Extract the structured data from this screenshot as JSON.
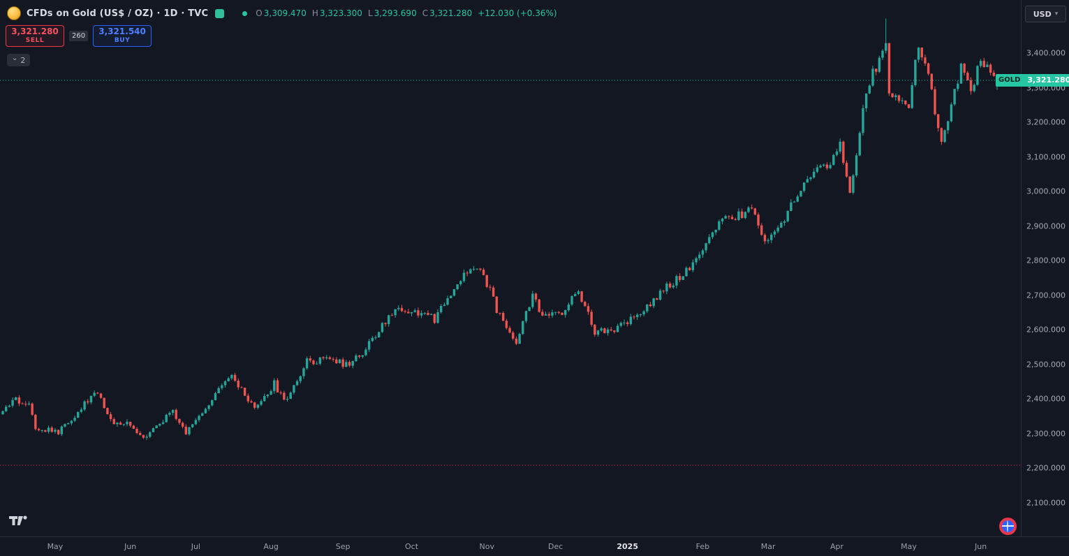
{
  "header": {
    "symbol_title": "CFDs on Gold (US$ / OZ) · 1D · TVC",
    "ohlc": {
      "o_label": "O",
      "o": "3,309.470",
      "h_label": "H",
      "h": "3,323.300",
      "l_label": "L",
      "l": "3,293.690",
      "c_label": "C",
      "c": "3,321.280",
      "change": "+12.030 (+0.36%)"
    }
  },
  "trade_panel": {
    "sell_price": "3,321.280",
    "sell_label": "SELL",
    "spread": "260",
    "buy_price": "3,321.540",
    "buy_label": "BUY"
  },
  "indicators_chip": {
    "count": "2"
  },
  "icons": {
    "dropdown_caret": "▾",
    "chevron_down": "⌄"
  },
  "price_axis": {
    "currency": "USD",
    "symbol_tag": "GOLD",
    "last_price_label": "3,321.280",
    "labels": [
      "3,400.000",
      "3,300.000",
      "3,200.000",
      "3,100.000",
      "3,000.000",
      "2,900.000",
      "2,800.000",
      "2,700.000",
      "2,600.000",
      "2,500.000",
      "2,400.000",
      "2,300.000",
      "2,200.000",
      "2,100.000"
    ]
  },
  "time_axis": {
    "labels": [
      "May",
      "Jun",
      "Jul",
      "Aug",
      "Sep",
      "Oct",
      "Nov",
      "Dec",
      "2025",
      "Feb",
      "Mar",
      "Apr",
      "May",
      "Jun"
    ]
  },
  "chart_data": {
    "type": "candlestick",
    "title": "CFDs on Gold (US$ / OZ), Daily, TVC",
    "timeframe": "1D",
    "symbol": "GOLD",
    "start_date": "2024-04-09",
    "end_date": "2025-06-09",
    "ylim": [
      2050,
      3560
    ],
    "grid": false,
    "colors": {
      "up": "#26a69a",
      "down": "#ef5350",
      "current_line": "#26c6a4",
      "alert_line": "#f23645"
    },
    "last_candle": {
      "open": 3309.47,
      "high": 3323.3,
      "low": 3293.69,
      "close": 3321.28
    },
    "spike": {
      "date": "2025-04-22",
      "high": 3500
    },
    "levels": [
      {
        "name": "current-price-line",
        "price": 3321.28,
        "color": "#26c6a4",
        "style": "dotted"
      },
      {
        "name": "lower-alert-line",
        "price": 2208,
        "color": "#f23645",
        "style": "dotted"
      }
    ],
    "anchors": [
      [
        "2024-04-09",
        2355
      ],
      [
        "2024-04-12",
        2395
      ],
      [
        "2024-04-19",
        2390
      ],
      [
        "2024-04-23",
        2322
      ],
      [
        "2024-05-02",
        2303
      ],
      [
        "2024-05-10",
        2365
      ],
      [
        "2024-05-20",
        2425
      ],
      [
        "2024-05-24",
        2335
      ],
      [
        "2024-05-31",
        2327
      ],
      [
        "2024-06-07",
        2293
      ],
      [
        "2024-06-20",
        2360
      ],
      [
        "2024-06-26",
        2300
      ],
      [
        "2024-07-05",
        2390
      ],
      [
        "2024-07-16",
        2465
      ],
      [
        "2024-07-25",
        2365
      ],
      [
        "2024-08-02",
        2443
      ],
      [
        "2024-08-07",
        2390
      ],
      [
        "2024-08-16",
        2507
      ],
      [
        "2024-08-27",
        2520
      ],
      [
        "2024-09-04",
        2494
      ],
      [
        "2024-09-12",
        2558
      ],
      [
        "2024-09-24",
        2662
      ],
      [
        "2024-10-04",
        2650
      ],
      [
        "2024-10-10",
        2629
      ],
      [
        "2024-10-22",
        2749
      ],
      [
        "2024-10-30",
        2785
      ],
      [
        "2024-11-06",
        2660
      ],
      [
        "2024-11-14",
        2563
      ],
      [
        "2024-11-21",
        2705
      ],
      [
        "2024-11-26",
        2632
      ],
      [
        "2024-12-04",
        2650
      ],
      [
        "2024-12-11",
        2716
      ],
      [
        "2024-12-18",
        2590
      ],
      [
        "2024-12-30",
        2608
      ],
      [
        "2025-01-08",
        2660
      ],
      [
        "2025-01-16",
        2715
      ],
      [
        "2025-01-30",
        2795
      ],
      [
        "2025-02-10",
        2910
      ],
      [
        "2025-02-19",
        2936
      ],
      [
        "2025-02-24",
        2951
      ],
      [
        "2025-02-28",
        2858
      ],
      [
        "2025-03-07",
        2910
      ],
      [
        "2025-03-14",
        2990
      ],
      [
        "2025-03-20",
        3045
      ],
      [
        "2025-03-28",
        3085
      ],
      [
        "2025-04-02",
        3130
      ],
      [
        "2025-04-07",
        2985
      ],
      [
        "2025-04-11",
        3235
      ],
      [
        "2025-04-16",
        3340
      ],
      [
        "2025-04-22",
        3420
      ],
      [
        "2025-04-23",
        3290
      ],
      [
        "2025-05-01",
        3240
      ],
      [
        "2025-05-06",
        3430
      ],
      [
        "2025-05-09",
        3330
      ],
      [
        "2025-05-15",
        3140
      ],
      [
        "2025-05-23",
        3360
      ],
      [
        "2025-05-28",
        3290
      ],
      [
        "2025-06-02",
        3380
      ],
      [
        "2025-06-05",
        3355
      ],
      [
        "2025-06-09",
        3321.28
      ]
    ]
  }
}
